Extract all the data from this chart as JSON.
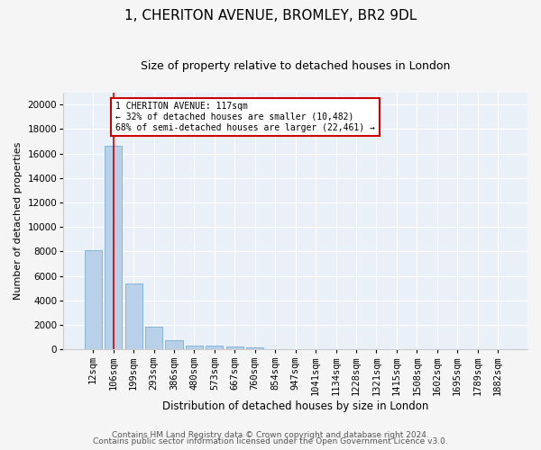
{
  "title1": "1, CHERITON AVENUE, BROMLEY, BR2 9DL",
  "title2": "Size of property relative to detached houses in London",
  "xlabel": "Distribution of detached houses by size in London",
  "ylabel": "Number of detached properties",
  "bar_labels": [
    "12sqm",
    "106sqm",
    "199sqm",
    "293sqm",
    "386sqm",
    "480sqm",
    "573sqm",
    "667sqm",
    "760sqm",
    "854sqm",
    "947sqm",
    "1041sqm",
    "1134sqm",
    "1228sqm",
    "1321sqm",
    "1415sqm",
    "1508sqm",
    "1602sqm",
    "1695sqm",
    "1789sqm",
    "1882sqm"
  ],
  "bar_values": [
    8100,
    16600,
    5400,
    1850,
    760,
    340,
    280,
    220,
    200,
    0,
    0,
    0,
    0,
    0,
    0,
    0,
    0,
    0,
    0,
    0,
    0
  ],
  "bar_color": "#b8d0e8",
  "bar_edge_color": "#7aafd4",
  "property_line_x": 1.0,
  "annotation_text": "1 CHERITON AVENUE: 117sqm\n← 32% of detached houses are smaller (10,482)\n68% of semi-detached houses are larger (22,461) →",
  "annotation_box_color": "#ffffff",
  "annotation_box_edge_color": "#cc0000",
  "vline_color": "#cc0000",
  "ylim": [
    0,
    21000
  ],
  "yticks": [
    0,
    2000,
    4000,
    6000,
    8000,
    10000,
    12000,
    14000,
    16000,
    18000,
    20000
  ],
  "footer1": "Contains HM Land Registry data © Crown copyright and database right 2024.",
  "footer2": "Contains public sector information licensed under the Open Government Licence v3.0.",
  "bg_color": "#eaf0f8",
  "fig_color": "#f5f5f5",
  "grid_color": "#ffffff",
  "title1_fontsize": 11,
  "title2_fontsize": 9,
  "xlabel_fontsize": 8.5,
  "ylabel_fontsize": 8,
  "tick_fontsize": 7.5,
  "annot_fontsize": 7,
  "footer_fontsize": 6.5
}
